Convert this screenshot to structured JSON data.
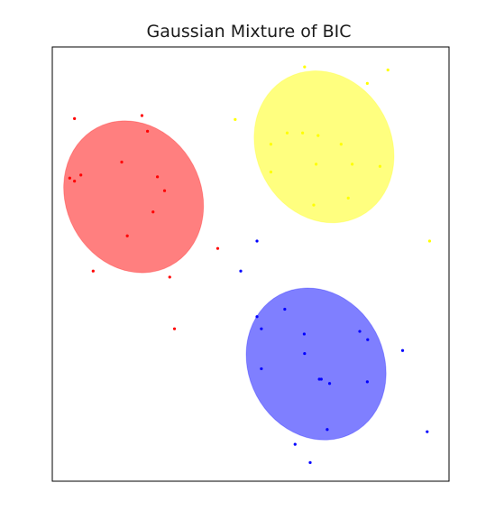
{
  "chart_data": {
    "type": "scatter",
    "title": "Gaussian Mixture of BIC",
    "xlabel": "",
    "ylabel": "",
    "xlim": [
      0,
      100
    ],
    "ylim": [
      0,
      100
    ],
    "grid": false,
    "axis_ticks": false,
    "components": [
      {
        "color": "#ff0000",
        "center": [
          20.5,
          65.5
        ],
        "width": 34,
        "height": 36,
        "angle": -28,
        "alpha": 0.5
      },
      {
        "color": "#ffff00",
        "center": [
          68.5,
          77
        ],
        "width": 34,
        "height": 36,
        "angle": -28,
        "alpha": 0.5
      },
      {
        "color": "#0000ff",
        "center": [
          66.5,
          27
        ],
        "width": 34,
        "height": 36,
        "angle": -28,
        "alpha": 0.5
      }
    ],
    "series": [
      {
        "color": "#ff0000",
        "points": [
          [
            5.6,
            83.5
          ],
          [
            22.6,
            84.2
          ],
          [
            24,
            80.6
          ],
          [
            4.4,
            69.8
          ],
          [
            5.6,
            69.1
          ],
          [
            7.2,
            70.5
          ],
          [
            17.5,
            73.5
          ],
          [
            26.5,
            70.1
          ],
          [
            28.3,
            66.9
          ],
          [
            25.4,
            62
          ],
          [
            18.9,
            56.5
          ],
          [
            41.7,
            53.6
          ],
          [
            10.3,
            48.4
          ],
          [
            29.6,
            47
          ],
          [
            30.8,
            35.1
          ]
        ]
      },
      {
        "color": "#ffff00",
        "points": [
          [
            63.6,
            95.4
          ],
          [
            84.6,
            94.7
          ],
          [
            79.4,
            91.6
          ],
          [
            46.1,
            83.3
          ],
          [
            59.2,
            80.2
          ],
          [
            63.1,
            80.2
          ],
          [
            67,
            79.6
          ],
          [
            55.1,
            77.6
          ],
          [
            72.8,
            77.6
          ],
          [
            66.5,
            73
          ],
          [
            75.6,
            73
          ],
          [
            82.6,
            72.5
          ],
          [
            55.1,
            71.2
          ],
          [
            74.6,
            65.2
          ],
          [
            65.9,
            63.6
          ],
          [
            95.1,
            55.3
          ]
        ]
      },
      {
        "color": "#0000ff",
        "points": [
          [
            51.6,
            55.3
          ],
          [
            47.5,
            48.4
          ],
          [
            58.6,
            39.6
          ],
          [
            51.6,
            37.9
          ],
          [
            52.7,
            35.1
          ],
          [
            63.5,
            33.9
          ],
          [
            77.5,
            34.5
          ],
          [
            79.5,
            32.6
          ],
          [
            88.3,
            30.1
          ],
          [
            63.6,
            29.4
          ],
          [
            52.7,
            25.9
          ],
          [
            67.3,
            23.5
          ],
          [
            67.8,
            23.5
          ],
          [
            69.9,
            22.5
          ],
          [
            79.4,
            22.9
          ],
          [
            69.3,
            11.9
          ],
          [
            94.5,
            11.4
          ],
          [
            61.2,
            8.5
          ],
          [
            65,
            4.3
          ]
        ]
      }
    ]
  }
}
